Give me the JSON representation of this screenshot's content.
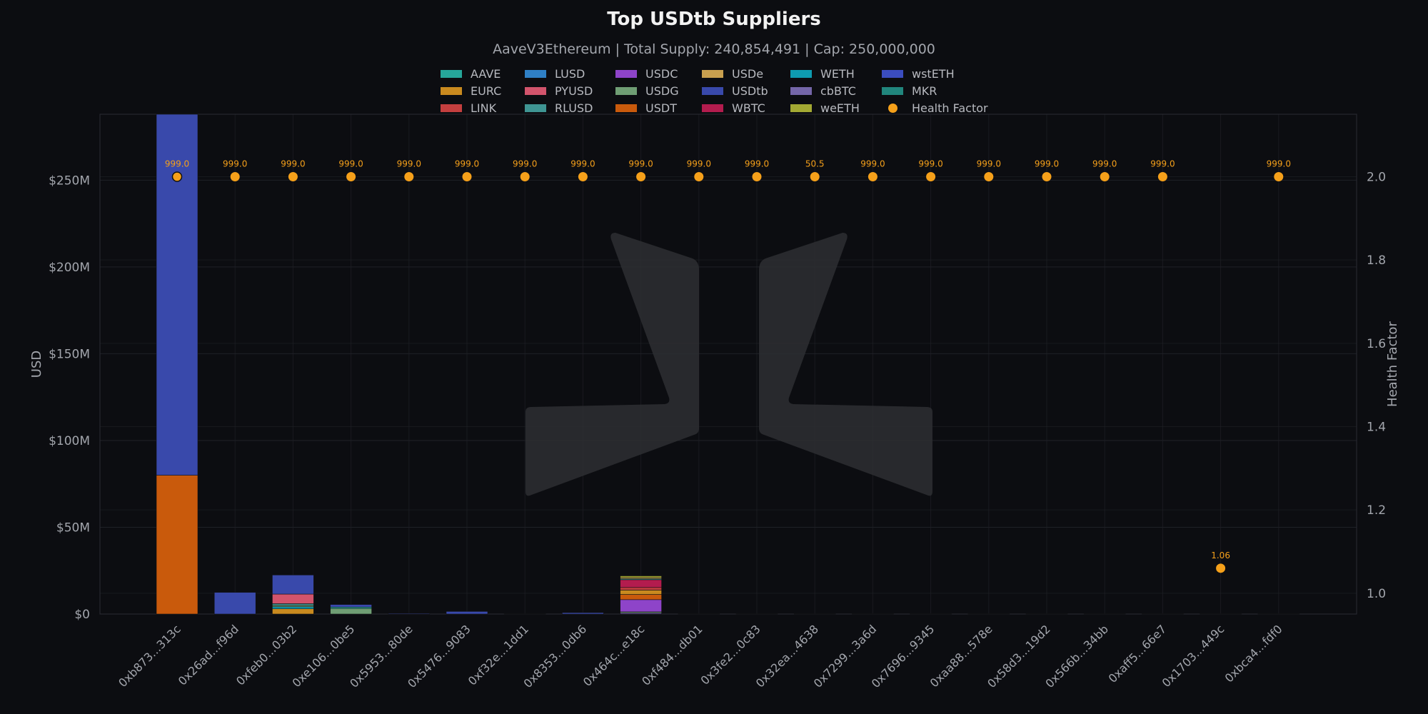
{
  "chart_data": {
    "type": "bar",
    "title": "Top USDtb Suppliers",
    "subtitle": "AaveV3Ethereum | Total Supply: 240,854,491 | Cap: 250,000,000",
    "ylabel": "USD",
    "y2label": "Health Factor",
    "ylim": [
      0,
      288000000
    ],
    "y2lim": [
      0.95,
      2.15
    ],
    "yticks": [
      {
        "value": 0,
        "label": "$0"
      },
      {
        "value": 50000000,
        "label": "$50M"
      },
      {
        "value": 100000000,
        "label": "$100M"
      },
      {
        "value": 150000000,
        "label": "$150M"
      },
      {
        "value": 200000000,
        "label": "$200M"
      },
      {
        "value": 250000000,
        "label": "$250M"
      }
    ],
    "y2ticks": [
      {
        "value": 1.0,
        "label": "1.0"
      },
      {
        "value": 1.2,
        "label": "1.2"
      },
      {
        "value": 1.4,
        "label": "1.4"
      },
      {
        "value": 1.6,
        "label": "1.6"
      },
      {
        "value": 1.8,
        "label": "1.8"
      },
      {
        "value": 2.0,
        "label": "2.0"
      }
    ],
    "grid": true,
    "legend_position": "top",
    "colors": {
      "background": "#0c0d11",
      "plot_border": "#2a2c33",
      "grid": "#1f2127",
      "text": "#a3a6ad",
      "health_factor": "#f5a01a",
      "watermark": "#2e2f33"
    },
    "assets": [
      {
        "name": "AAVE",
        "color": "#26a69a"
      },
      {
        "name": "LUSD",
        "color": "#2f80c6"
      },
      {
        "name": "USDC",
        "color": "#8e44c9"
      },
      {
        "name": "USDe",
        "color": "#c9a04f"
      },
      {
        "name": "WETH",
        "color": "#0e9bb0"
      },
      {
        "name": "wstETH",
        "color": "#3b4dbf"
      },
      {
        "name": "EURC",
        "color": "#c98a1f"
      },
      {
        "name": "PYUSD",
        "color": "#d2546c"
      },
      {
        "name": "USDG",
        "color": "#6f9e74"
      },
      {
        "name": "USDtb",
        "color": "#3949ab"
      },
      {
        "name": "cbBTC",
        "color": "#7466a8"
      },
      {
        "name": "MKR",
        "color": "#21867d"
      },
      {
        "name": "LINK",
        "color": "#c43f3f"
      },
      {
        "name": "RLUSD",
        "color": "#3f9593"
      },
      {
        "name": "USDT",
        "color": "#c95a0c"
      },
      {
        "name": "WBTC",
        "color": "#b31c4e"
      },
      {
        "name": "weETH",
        "color": "#a3a933"
      }
    ],
    "health_factor_label": "Health Factor",
    "categories": [
      "0xb873...313c",
      "0x26ad...f96d",
      "0xfeb0...03b2",
      "0xe106...0be5",
      "0x5953...80de",
      "0x5476...9083",
      "0xf32e...1dd1",
      "0x8353...0db6",
      "0x464c...e18c",
      "0xf484...db01",
      "0x3fe2...0c83",
      "0x32ea...4638",
      "0x7299...3a6d",
      "0x7696...9345",
      "0xaa88...578e",
      "0x58d3...19d2",
      "0x566b...34bb",
      "0xaff5...66e7",
      "0x1703...449c",
      "0xbca4...fdf0"
    ],
    "suppliers": [
      {
        "segments": [
          {
            "asset": "USDT",
            "value": 80000000
          },
          {
            "asset": "USDtb",
            "value": 209000000
          }
        ],
        "health_factor": 2.0,
        "hf_label": "999.0"
      },
      {
        "segments": [
          {
            "asset": "USDtb",
            "value": 12500000
          }
        ],
        "health_factor": 2.0,
        "hf_label": "999.0"
      },
      {
        "segments": [
          {
            "asset": "EURC",
            "value": 3000000
          },
          {
            "asset": "WETH",
            "value": 1200000
          },
          {
            "asset": "USDG",
            "value": 800000
          },
          {
            "asset": "RLUSD",
            "value": 1000000
          },
          {
            "asset": "PYUSD",
            "value": 5500000
          },
          {
            "asset": "USDtb",
            "value": 11000000
          }
        ],
        "health_factor": 2.0,
        "hf_label": "999.0"
      },
      {
        "segments": [
          {
            "asset": "USDG",
            "value": 3200000
          },
          {
            "asset": "AAVE",
            "value": 800000
          },
          {
            "asset": "USDtb",
            "value": 1500000
          }
        ],
        "health_factor": 2.0,
        "hf_label": "999.0"
      },
      {
        "segments": [
          {
            "asset": "USDtb",
            "value": 400000
          }
        ],
        "health_factor": 2.0,
        "hf_label": "999.0"
      },
      {
        "segments": [
          {
            "asset": "USDtb",
            "value": 1500000
          }
        ],
        "health_factor": 2.0,
        "hf_label": "999.0"
      },
      {
        "segments": [
          {
            "asset": "USDtb",
            "value": 100000
          }
        ],
        "health_factor": 2.0,
        "hf_label": "999.0"
      },
      {
        "segments": [
          {
            "asset": "USDtb",
            "value": 800000
          }
        ],
        "health_factor": 2.0,
        "hf_label": "999.0"
      },
      {
        "segments": [
          {
            "asset": "cbBTC",
            "value": 700000
          },
          {
            "asset": "USDG",
            "value": 600000
          },
          {
            "asset": "USDC",
            "value": 7000000
          },
          {
            "asset": "USDT",
            "value": 3000000
          },
          {
            "asset": "EURC",
            "value": 2500000
          },
          {
            "asset": "LINK",
            "value": 1500000
          },
          {
            "asset": "WBTC",
            "value": 4500000
          },
          {
            "asset": "AAVE",
            "value": 600000
          },
          {
            "asset": "USDe",
            "value": 700000
          },
          {
            "asset": "weETH",
            "value": 900000
          }
        ],
        "health_factor": 2.0,
        "hf_label": "999.0"
      },
      {
        "segments": [
          {
            "asset": "USDtb",
            "value": 50000
          }
        ],
        "health_factor": 2.0,
        "hf_label": "999.0"
      },
      {
        "segments": [
          {
            "asset": "USDtb",
            "value": 50000
          }
        ],
        "health_factor": 2.0,
        "hf_label": "999.0"
      },
      {
        "segments": [
          {
            "asset": "USDtb",
            "value": 50000
          }
        ],
        "health_factor": 2.0,
        "hf_label": "50.5"
      },
      {
        "segments": [
          {
            "asset": "USDtb",
            "value": 40000
          }
        ],
        "health_factor": 2.0,
        "hf_label": "999.0"
      },
      {
        "segments": [
          {
            "asset": "USDtb",
            "value": 40000
          }
        ],
        "health_factor": 2.0,
        "hf_label": "999.0"
      },
      {
        "segments": [
          {
            "asset": "USDtb",
            "value": 30000
          }
        ],
        "health_factor": 2.0,
        "hf_label": "999.0"
      },
      {
        "segments": [
          {
            "asset": "USDtb",
            "value": 30000
          }
        ],
        "health_factor": 2.0,
        "hf_label": "999.0"
      },
      {
        "segments": [
          {
            "asset": "USDtb",
            "value": 30000
          }
        ],
        "health_factor": 2.0,
        "hf_label": "999.0"
      },
      {
        "segments": [
          {
            "asset": "USDtb",
            "value": 20000
          }
        ],
        "health_factor": 2.0,
        "hf_label": "999.0"
      },
      {
        "segments": [
          {
            "asset": "USDtb",
            "value": 20000
          }
        ],
        "health_factor": 1.06,
        "hf_label": "1.06"
      },
      {
        "segments": [
          {
            "asset": "USDtb",
            "value": 20000
          }
        ],
        "health_factor": 2.0,
        "hf_label": "999.0"
      }
    ]
  }
}
